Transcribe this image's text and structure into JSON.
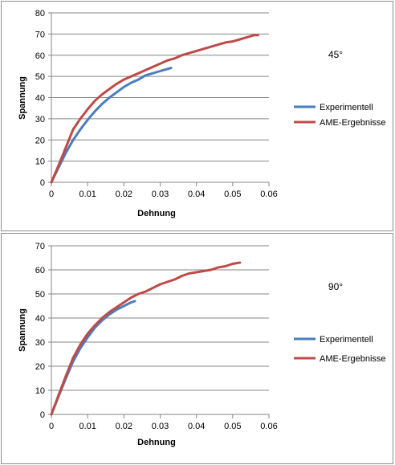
{
  "chart_data": [
    {
      "type": "line",
      "title": "",
      "annotation": "45°",
      "xlabel": "Dehnung",
      "ylabel": "Spannung",
      "xlim": [
        0,
        0.06
      ],
      "ylim": [
        0,
        80
      ],
      "xticks": [
        "0",
        "0.01",
        "0.02",
        "0.03",
        "0.04",
        "0.05",
        "0.06"
      ],
      "yticks": [
        "0",
        "10",
        "20",
        "30",
        "40",
        "50",
        "60",
        "70",
        "80"
      ],
      "grid": "horizontal",
      "legend": "right",
      "series": [
        {
          "name": "Experimentell",
          "color": "#4a7ebb",
          "points": [
            [
              0,
              0
            ],
            [
              0.002,
              7
            ],
            [
              0.004,
              14
            ],
            [
              0.006,
              20
            ],
            [
              0.008,
              25
            ],
            [
              0.01,
              29.5
            ],
            [
              0.012,
              33.5
            ],
            [
              0.014,
              37
            ],
            [
              0.016,
              40
            ],
            [
              0.018,
              42.5
            ],
            [
              0.02,
              45
            ],
            [
              0.022,
              47
            ],
            [
              0.024,
              48.5
            ],
            [
              0.026,
              50.5
            ],
            [
              0.028,
              51.5
            ],
            [
              0.03,
              52.5
            ],
            [
              0.032,
              53.5
            ],
            [
              0.033,
              54
            ]
          ]
        },
        {
          "name": "AME-Ergebnisse",
          "color": "#be4b48",
          "points": [
            [
              0,
              0
            ],
            [
              0.002,
              8
            ],
            [
              0.004,
              16.5
            ],
            [
              0.006,
              25
            ],
            [
              0.008,
              30
            ],
            [
              0.01,
              34.5
            ],
            [
              0.012,
              38.5
            ],
            [
              0.014,
              41.5
            ],
            [
              0.016,
              44
            ],
            [
              0.018,
              46.5
            ],
            [
              0.02,
              48.5
            ],
            [
              0.022,
              50
            ],
            [
              0.024,
              51.5
            ],
            [
              0.026,
              53
            ],
            [
              0.028,
              54.5
            ],
            [
              0.03,
              56
            ],
            [
              0.032,
              57.5
            ],
            [
              0.034,
              58.5
            ],
            [
              0.036,
              60
            ],
            [
              0.038,
              61
            ],
            [
              0.04,
              62
            ],
            [
              0.042,
              63
            ],
            [
              0.044,
              64
            ],
            [
              0.046,
              65
            ],
            [
              0.048,
              66
            ],
            [
              0.05,
              66.5
            ],
            [
              0.052,
              67.5
            ],
            [
              0.054,
              68.5
            ],
            [
              0.056,
              69.5
            ],
            [
              0.057,
              69.5
            ]
          ]
        }
      ]
    },
    {
      "type": "line",
      "title": "",
      "annotation": "90°",
      "xlabel": "Dehnung",
      "ylabel": "Spannung",
      "xlim": [
        0,
        0.06
      ],
      "ylim": [
        0,
        70
      ],
      "xticks": [
        "0",
        "0.01",
        "0.02",
        "0.03",
        "0.04",
        "0.05",
        "0.06"
      ],
      "yticks": [
        "0",
        "10",
        "20",
        "30",
        "40",
        "50",
        "60",
        "70"
      ],
      "grid": "horizontal",
      "legend": "right",
      "series": [
        {
          "name": "Experimentell",
          "color": "#4a7ebb",
          "points": [
            [
              0,
              0
            ],
            [
              0.002,
              7.5
            ],
            [
              0.004,
              15
            ],
            [
              0.006,
              22
            ],
            [
              0.008,
              27.5
            ],
            [
              0.01,
              32
            ],
            [
              0.012,
              36
            ],
            [
              0.014,
              39
            ],
            [
              0.016,
              41.5
            ],
            [
              0.018,
              43.5
            ],
            [
              0.02,
              45
            ],
            [
              0.022,
              46.5
            ],
            [
              0.023,
              47
            ]
          ]
        },
        {
          "name": "AME-Ergebnisse",
          "color": "#be4b48",
          "points": [
            [
              0,
              0
            ],
            [
              0.002,
              8
            ],
            [
              0.004,
              16
            ],
            [
              0.006,
              23.5
            ],
            [
              0.008,
              29
            ],
            [
              0.01,
              33.5
            ],
            [
              0.012,
              37
            ],
            [
              0.014,
              40
            ],
            [
              0.016,
              42.5
            ],
            [
              0.018,
              44.5
            ],
            [
              0.02,
              46.5
            ],
            [
              0.022,
              48.5
            ],
            [
              0.024,
              50
            ],
            [
              0.026,
              51
            ],
            [
              0.028,
              52.5
            ],
            [
              0.03,
              54
            ],
            [
              0.032,
              55
            ],
            [
              0.034,
              56
            ],
            [
              0.036,
              57.5
            ],
            [
              0.038,
              58.5
            ],
            [
              0.04,
              59
            ],
            [
              0.042,
              59.5
            ],
            [
              0.044,
              60
            ],
            [
              0.046,
              61
            ],
            [
              0.048,
              61.5
            ],
            [
              0.05,
              62.5
            ],
            [
              0.052,
              63
            ]
          ]
        }
      ]
    }
  ]
}
